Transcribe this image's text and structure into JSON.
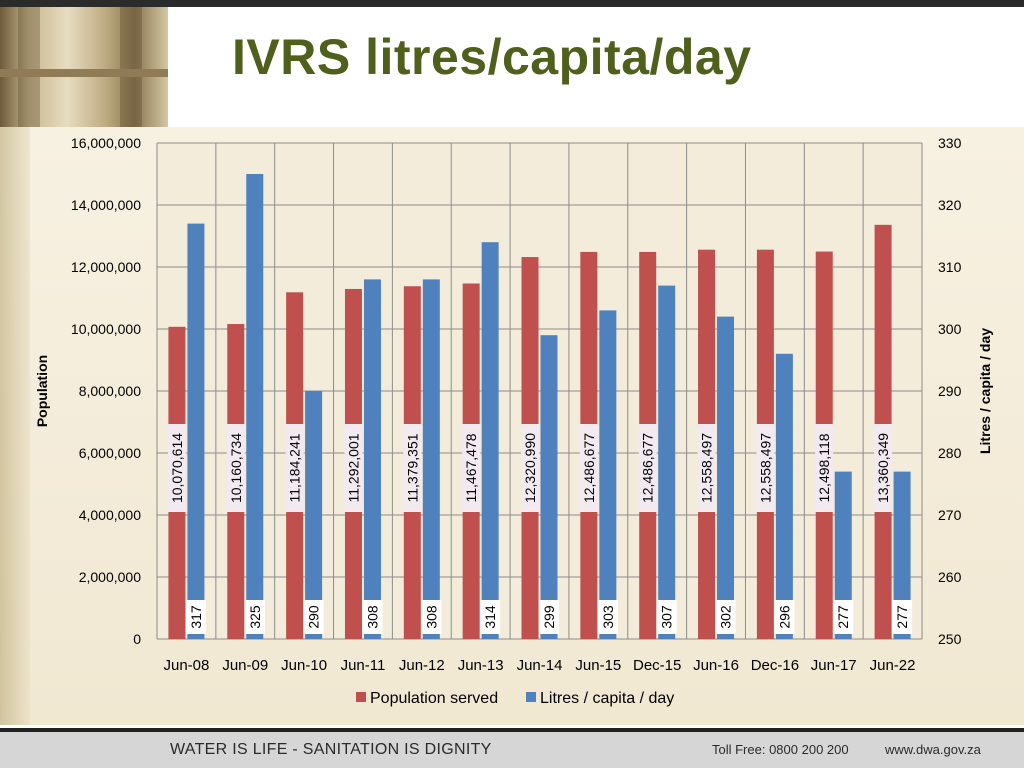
{
  "slide": {
    "title": "IVRS litres/capita/day",
    "footer_slogan": "WATER IS LIFE - SANITATION IS DIGNITY",
    "footer_tollfree": "Toll Free: 0800 200 200",
    "footer_website": "www.dwa.gov.za"
  },
  "colors": {
    "title": "#4f5f1c",
    "population": "#c0504d",
    "litres": "#4f81bd"
  },
  "chart_data": {
    "type": "bar",
    "categories": [
      "Jun-08",
      "Jun-09",
      "Jun-10",
      "Jun-11",
      "Jun-12",
      "Jun-13",
      "Jun-14",
      "Jun-15",
      "Dec-15",
      "Jun-16",
      "Dec-16",
      "Jun-17",
      "Jun-22"
    ],
    "series": [
      {
        "name": "Population served",
        "axis": "left",
        "values": [
          10070614,
          10160734,
          11184241,
          11292001,
          11379351,
          11467478,
          12320990,
          12486677,
          12486677,
          12558497,
          12558497,
          12498118,
          13360349
        ],
        "labels": [
          "10,070,614",
          "10,160,734",
          "11,184,241",
          "11,292,001",
          "11,379,351",
          "11,467,478",
          "12,320,990",
          "12,486,677",
          "12,486,677",
          "12,558,497",
          "12,558,497",
          "12,498,118",
          "13,360,349"
        ]
      },
      {
        "name": "Litres / capita / day",
        "axis": "right",
        "values": [
          317,
          325,
          290,
          308,
          308,
          314,
          299,
          303,
          307,
          302,
          296,
          277,
          277
        ],
        "labels": [
          "317",
          "325",
          "290",
          "308",
          "308",
          "314",
          "299",
          "303",
          "307",
          "302",
          "296",
          "277",
          "277"
        ]
      }
    ],
    "ylabel": "Population",
    "y2label": "Litres / capita / day",
    "ylim": [
      0,
      16000000
    ],
    "y2lim": [
      250,
      330
    ],
    "y_ticks": [
      0,
      2000000,
      4000000,
      6000000,
      8000000,
      10000000,
      12000000,
      14000000,
      16000000
    ],
    "y_tick_labels": [
      "0",
      "2,000,000",
      "4,000,000",
      "6,000,000",
      "8,000,000",
      "10,000,000",
      "12,000,000",
      "14,000,000",
      "16,000,000"
    ],
    "y2_ticks": [
      250,
      260,
      270,
      280,
      290,
      300,
      310,
      320,
      330
    ],
    "y2_tick_labels": [
      "250",
      "260",
      "270",
      "280",
      "290",
      "300",
      "310",
      "320",
      "330"
    ],
    "grid": true,
    "legend": "bottom"
  }
}
